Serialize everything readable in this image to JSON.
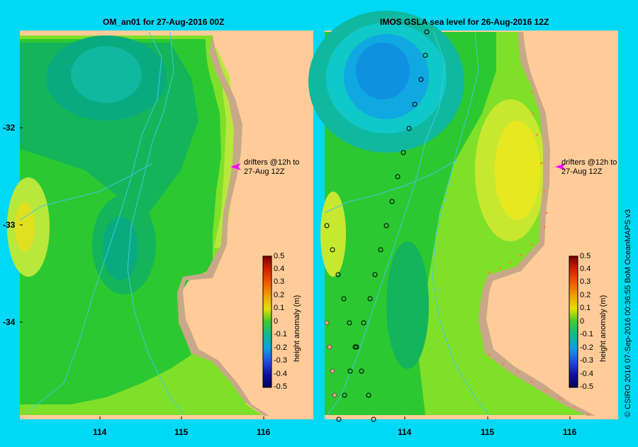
{
  "left_panel": {
    "title": "OM_an01  for 27-Aug-2016 00Z",
    "lat_labels": [
      "-32",
      "-33",
      "-34"
    ],
    "lon_labels": [
      "114",
      "115",
      "116"
    ],
    "drifter_note": [
      "drifters @12h to",
      "27-Aug 12Z"
    ]
  },
  "right_panel": {
    "title": "IMOS  GSLA sea level  for 26-Aug-2016 12Z",
    "lon_labels": [
      "114",
      "115",
      "116"
    ],
    "drifter_note": [
      "drifters @12h to",
      "27-Aug 12Z"
    ]
  },
  "colorbar": {
    "title": "height anomaly (m)",
    "ticks": [
      "0.5",
      "0.4",
      "0.3",
      "0.2",
      "0.1",
      "0",
      "-0.1",
      "-0.2",
      "-0.3",
      "-0.4",
      "-0.5"
    ]
  },
  "credit": "© CSIRO 2016   07-Sep-2016 00:36:55 BoM OceanMAPS v3",
  "colors": {
    "background": "#00d9f5",
    "land": "#ffcc99",
    "coast": "#c8a888",
    "drifter_arrow": "#ff00ff",
    "bathymetry": "#40c8e0"
  }
}
